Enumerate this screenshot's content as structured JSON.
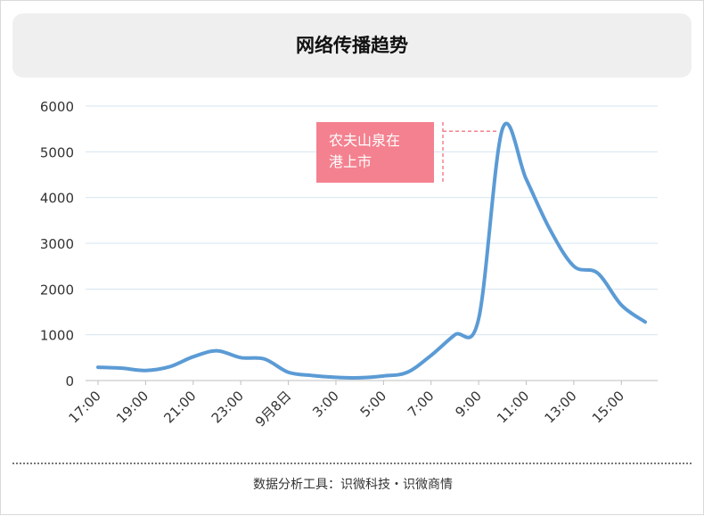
{
  "title": "网络传播趋势",
  "footer": "数据分析工具：识微科技・识微商情",
  "chart_data": {
    "type": "line",
    "title": "网络传播趋势",
    "xlabel": "",
    "ylabel": "",
    "ylim": [
      0,
      6000
    ],
    "yticks": [
      0,
      1000,
      2000,
      3000,
      4000,
      5000,
      6000
    ],
    "xticks": [
      "17:00",
      "19:00",
      "21:00",
      "23:00",
      "9月8日",
      "3:00",
      "5:00",
      "7:00",
      "9:00",
      "11:00",
      "13:00",
      "15:00"
    ],
    "grid": true,
    "line_color": "#5b9bd5",
    "annotation": {
      "text_line1": "农夫山泉在",
      "text_line2": "港上市",
      "x_index": 16.8,
      "y": 5450,
      "color": "#f4818f"
    },
    "series": [
      {
        "values": [
          290,
          270,
          220,
          300,
          520,
          650,
          500,
          470,
          180,
          110,
          70,
          60,
          100,
          180,
          550,
          1000,
          1350,
          5500,
          4400,
          3300,
          2500,
          2350,
          1650,
          1280
        ]
      }
    ]
  }
}
